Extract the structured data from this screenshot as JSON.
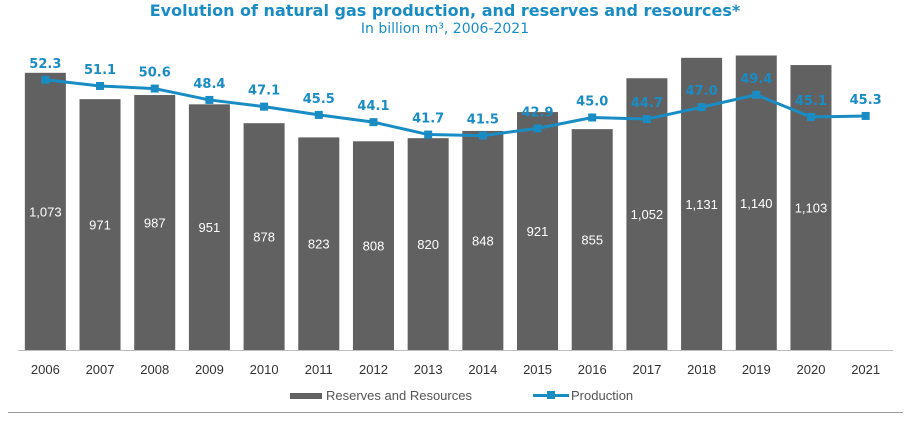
{
  "chart_data": {
    "type": "bar",
    "title": "Evolution of natural gas production, and reserves and resources*",
    "subtitle": "In billion m³, 2006-2021",
    "categories": [
      "2006",
      "2007",
      "2008",
      "2009",
      "2010",
      "2011",
      "2012",
      "2013",
      "2014",
      "2015",
      "2016",
      "2017",
      "2018",
      "2019",
      "2020",
      "2021"
    ],
    "series": [
      {
        "name": "Reserves and Resources",
        "type": "bar",
        "axis": "left",
        "values": [
          1073,
          971,
          987,
          951,
          878,
          823,
          808,
          820,
          848,
          921,
          855,
          1052,
          1131,
          1140,
          1103,
          null
        ],
        "labels": [
          "1,073",
          "971",
          "987",
          "951",
          "878",
          "823",
          "808",
          "820",
          "848",
          "921",
          "855",
          "1,052",
          "1,131",
          "1,140",
          "1,103",
          ""
        ]
      },
      {
        "name": "Production",
        "type": "line",
        "axis": "right",
        "values": [
          52.3,
          51.1,
          50.6,
          48.4,
          47.1,
          45.5,
          44.1,
          41.7,
          41.5,
          42.9,
          45.0,
          44.7,
          47.0,
          49.4,
          45.1,
          45.3
        ],
        "labels": [
          "52.3",
          "51.1",
          "50.6",
          "48.4",
          "47.1",
          "45.5",
          "44.1",
          "41.7",
          "41.5",
          "42.9",
          "45.0",
          "44.7",
          "47.0",
          "49.4",
          "45.1",
          "45.3"
        ]
      }
    ],
    "ylim_left": [
      0,
      1200
    ],
    "ylim_right": [
      0,
      60
    ],
    "grid": false,
    "legend_position": "bottom"
  },
  "colors": {
    "bar": "#616161",
    "line": "#1a8cc4",
    "bar_label": "#ffffff",
    "line_label": "#1a8cc4",
    "axis_text": "#333333"
  }
}
